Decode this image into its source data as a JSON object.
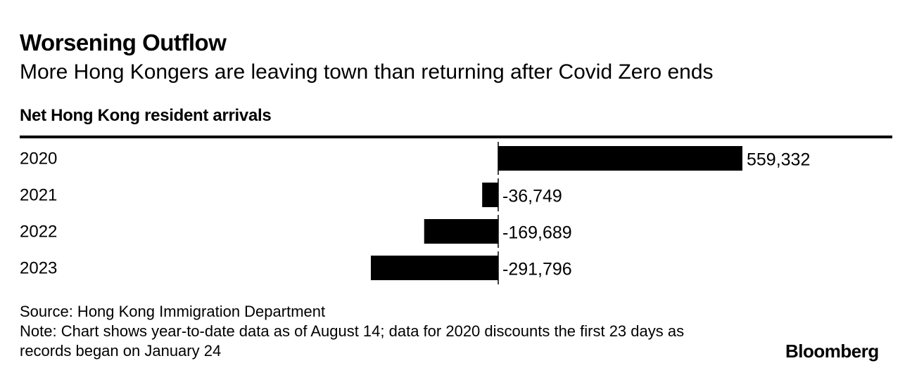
{
  "title": "Worsening Outflow",
  "subtitle": "More Hong Kongers are leaving town than returning after Covid Zero ends",
  "footer": {
    "source": "Source: Hong Kong Immigration Department",
    "note": "Note: Chart shows year-to-date data as of August 14; data for 2020 discounts the first 23 days as records began on January 24",
    "logo": "Bloomberg"
  },
  "chart_data": {
    "type": "bar",
    "orientation": "horizontal",
    "title": "Net Hong Kong resident arrivals",
    "categories": [
      "2020",
      "2021",
      "2022",
      "2023"
    ],
    "values": [
      559332,
      -36749,
      -169689,
      -291796
    ],
    "value_labels": [
      "559,332",
      "-36,749",
      "-169,689",
      "-291,796"
    ],
    "bar_color": "#000000",
    "grid": false
  }
}
